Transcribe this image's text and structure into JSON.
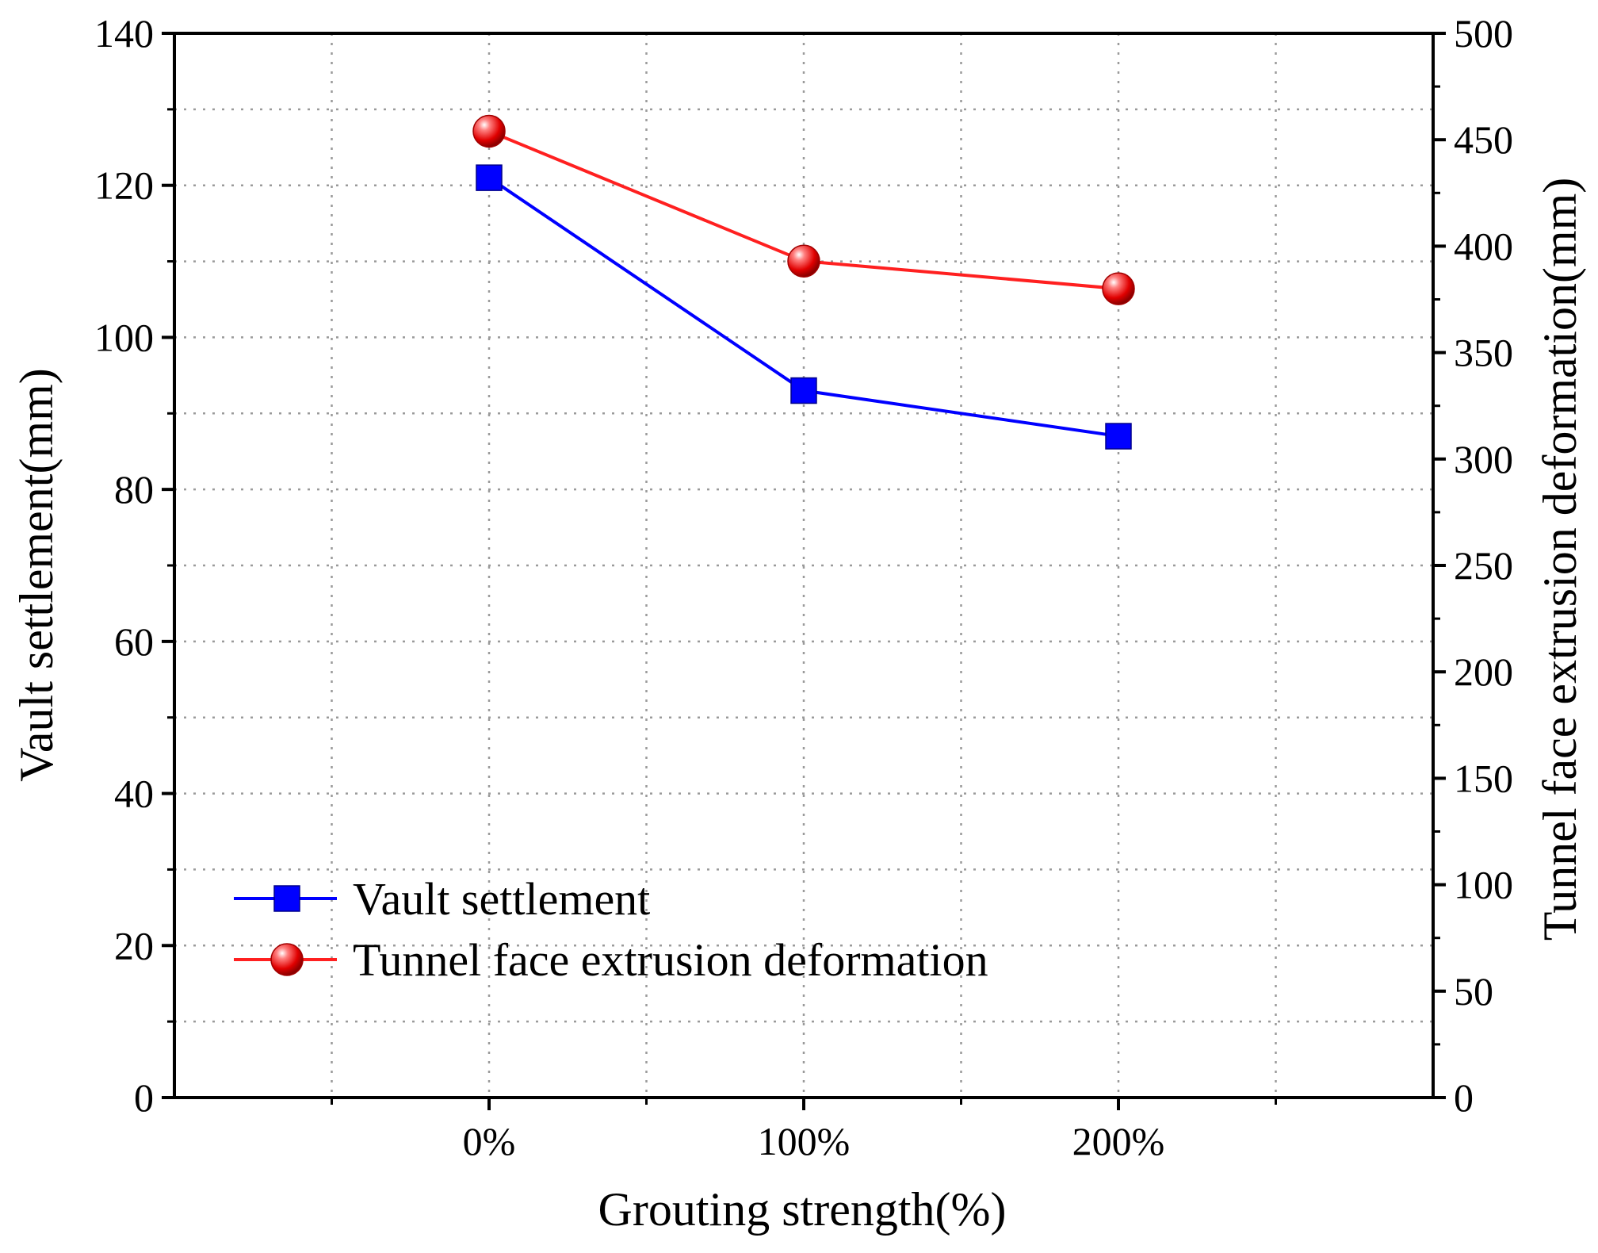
{
  "chart_data": {
    "type": "line",
    "title": "",
    "xlabel": "Grouting strength(%)",
    "ylabel": "Vault settlement(mm)",
    "y2label": "Tunnel face extrusion deformation(mm)",
    "categories": [
      "0%",
      "100%",
      "200%"
    ],
    "ylim": [
      0,
      140
    ],
    "yticks": [
      0,
      20,
      40,
      60,
      80,
      100,
      120,
      140
    ],
    "y2lim": [
      0,
      500
    ],
    "y2ticks": [
      0,
      50,
      100,
      150,
      200,
      250,
      300,
      350,
      400,
      450,
      500
    ],
    "grid": true,
    "legend_position": "bottom-left",
    "series": [
      {
        "name": "Vault settlement",
        "axis": "left",
        "values": [
          121,
          93,
          87
        ],
        "color": "#0000ff",
        "marker": "square"
      },
      {
        "name": "Tunnel face extrusion deformation",
        "axis": "right",
        "values": [
          454,
          393,
          380
        ],
        "color": "#ff2020",
        "marker": "circle"
      }
    ]
  }
}
